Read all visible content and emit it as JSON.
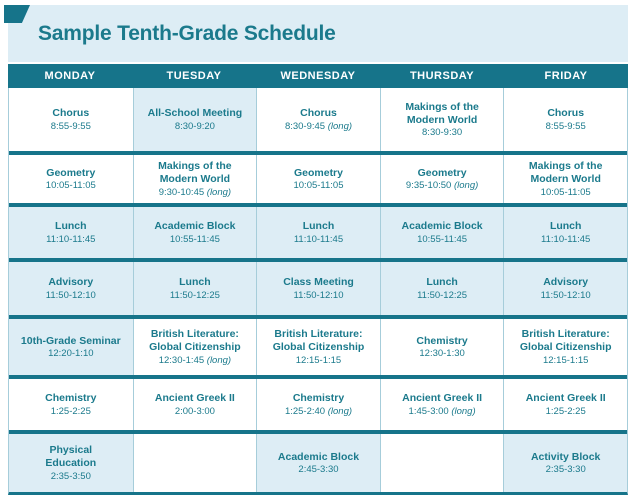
{
  "title": "Sample Tenth-Grade Schedule",
  "colors": {
    "accent": "#16748a",
    "text": "#1b7a8c",
    "highlight": "#ddedf5",
    "divider": "#a6cdda"
  },
  "table": {
    "columns": [
      "MONDAY",
      "TUESDAY",
      "WEDNESDAY",
      "THURSDAY",
      "FRIDAY"
    ],
    "long_marker": "(long)",
    "rows": [
      {
        "cells": [
          {
            "name": "Chorus",
            "time": "8:55-9:55",
            "long": false,
            "highlight": false
          },
          {
            "name": "All-School Meeting",
            "time": "8:30-9:20",
            "long": false,
            "highlight": true
          },
          {
            "name": "Chorus",
            "time": "8:30-9:45",
            "long": true,
            "highlight": false
          },
          {
            "name": "Makings of the\nModern World",
            "time": "8:30-9:30",
            "long": false,
            "highlight": false
          },
          {
            "name": "Chorus",
            "time": "8:55-9:55",
            "long": false,
            "highlight": false
          }
        ]
      },
      {
        "cells": [
          {
            "name": "Geometry",
            "time": "10:05-11:05",
            "long": false,
            "highlight": false
          },
          {
            "name": "Makings of the\nModern World",
            "time": "9:30-10:45",
            "long": true,
            "highlight": false
          },
          {
            "name": "Geometry",
            "time": "10:05-11:05",
            "long": false,
            "highlight": false
          },
          {
            "name": "Geometry",
            "time": "9:35-10:50",
            "long": true,
            "highlight": false
          },
          {
            "name": "Makings of the\nModern World",
            "time": "10:05-11:05",
            "long": false,
            "highlight": false
          }
        ]
      },
      {
        "cells": [
          {
            "name": "Lunch",
            "time": "11:10-11:45",
            "long": false,
            "highlight": true
          },
          {
            "name": "Academic Block",
            "time": "10:55-11:45",
            "long": false,
            "highlight": true
          },
          {
            "name": "Lunch",
            "time": "11:10-11:45",
            "long": false,
            "highlight": true
          },
          {
            "name": "Academic Block",
            "time": "10:55-11:45",
            "long": false,
            "highlight": true
          },
          {
            "name": "Lunch",
            "time": "11:10-11:45",
            "long": false,
            "highlight": true
          }
        ]
      },
      {
        "cells": [
          {
            "name": "Advisory",
            "time": "11:50-12:10",
            "long": false,
            "highlight": true
          },
          {
            "name": "Lunch",
            "time": "11:50-12:25",
            "long": false,
            "highlight": true
          },
          {
            "name": "Class Meeting",
            "time": "11:50-12:10",
            "long": false,
            "highlight": true
          },
          {
            "name": "Lunch",
            "time": "11:50-12:25",
            "long": false,
            "highlight": true
          },
          {
            "name": "Advisory",
            "time": "11:50-12:10",
            "long": false,
            "highlight": true
          }
        ]
      },
      {
        "cells": [
          {
            "name": "10th-Grade Seminar",
            "time": "12:20-1:10",
            "long": false,
            "highlight": true
          },
          {
            "name": "British Literature:\nGlobal Citizenship",
            "time": "12:30-1:45",
            "long": true,
            "highlight": false
          },
          {
            "name": "British Literature:\nGlobal Citizenship",
            "time": "12:15-1:15",
            "long": false,
            "highlight": false
          },
          {
            "name": "Chemistry",
            "time": "12:30-1:30",
            "long": false,
            "highlight": false
          },
          {
            "name": "British Literature:\nGlobal Citizenship",
            "time": "12:15-1:15",
            "long": false,
            "highlight": false
          }
        ]
      },
      {
        "cells": [
          {
            "name": "Chemistry",
            "time": "1:25-2:25",
            "long": false,
            "highlight": false
          },
          {
            "name": "Ancient Greek II",
            "time": "2:00-3:00",
            "long": false,
            "highlight": false
          },
          {
            "name": "Chemistry",
            "time": "1:25-2:40",
            "long": true,
            "highlight": false
          },
          {
            "name": "Ancient Greek II",
            "time": "1:45-3:00",
            "long": true,
            "highlight": false
          },
          {
            "name": "Ancient Greek II",
            "time": "1:25-2:25",
            "long": false,
            "highlight": false
          }
        ]
      },
      {
        "cells": [
          {
            "name": "Physical\nEducation",
            "time": "2:35-3:50",
            "long": false,
            "highlight": true
          },
          {
            "name": "",
            "time": "",
            "long": false,
            "highlight": false
          },
          {
            "name": "Academic Block",
            "time": "2:45-3:30",
            "long": false,
            "highlight": true
          },
          {
            "name": "",
            "time": "",
            "long": false,
            "highlight": false
          },
          {
            "name": "Activity Block",
            "time": "2:35-3:30",
            "long": false,
            "highlight": true
          }
        ]
      }
    ]
  }
}
